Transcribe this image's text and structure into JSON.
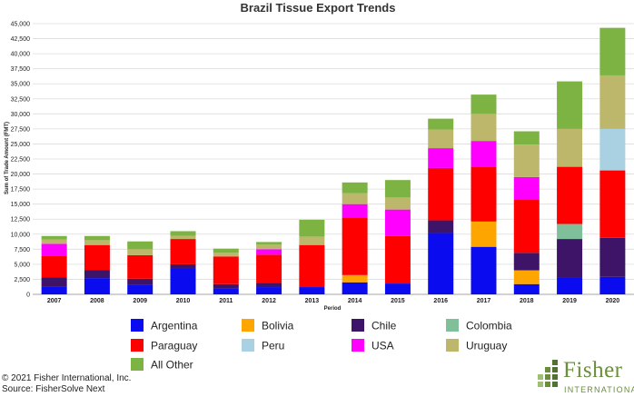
{
  "chart_data": {
    "type": "bar",
    "stacked": true,
    "title": "Brazil Tissue Export Trends",
    "xlabel": "Period",
    "ylabel": "Sum of Trade Amount (FMT)",
    "ylim": [
      0,
      45000
    ],
    "yticks": [
      0,
      2500,
      5000,
      7500,
      10000,
      12500,
      15000,
      17500,
      20000,
      22500,
      25000,
      27500,
      30000,
      32500,
      35000,
      37500,
      40000,
      42500,
      45000
    ],
    "ytick_labels": [
      "0",
      "2,500",
      "5,000",
      "7,500",
      "10,000",
      "12,500",
      "15,000",
      "17,500",
      "20,000",
      "22,500",
      "25,000",
      "27,500",
      "30,000",
      "32,500",
      "35,000",
      "37,500",
      "40,000",
      "42,500",
      "45,000"
    ],
    "grid": true,
    "legend_position": "bottom",
    "categories": [
      "2007",
      "2008",
      "2009",
      "2010",
      "2011",
      "2012",
      "2013",
      "2014",
      "2015",
      "2016",
      "2017",
      "2018",
      "2019",
      "2020"
    ],
    "series": [
      {
        "name": "Argentina",
        "color": "#0b0bf0",
        "values": [
          1300,
          2700,
          1600,
          4300,
          1000,
          1200,
          1200,
          2000,
          1800,
          10200,
          7900,
          1700,
          2800,
          2900
        ]
      },
      {
        "name": "Bolivia",
        "color": "#ffa500",
        "values": [
          0,
          0,
          0,
          0,
          0,
          0,
          0,
          1200,
          0,
          0,
          4200,
          2300,
          0,
          0
        ]
      },
      {
        "name": "Chile",
        "color": "#3d1467",
        "values": [
          1500,
          1300,
          1000,
          700,
          700,
          700,
          0,
          0,
          0,
          2100,
          0,
          2900,
          6400,
          6500
        ]
      },
      {
        "name": "Colombia",
        "color": "#7fbf9a",
        "values": [
          0,
          0,
          0,
          0,
          0,
          0,
          0,
          0,
          0,
          0,
          0,
          0,
          2500,
          0
        ]
      },
      {
        "name": "Paraguay",
        "color": "#ff0000",
        "values": [
          3600,
          4200,
          3900,
          4200,
          4600,
          4700,
          7000,
          9600,
          7900,
          8700,
          9100,
          8800,
          9500,
          11200
        ]
      },
      {
        "name": "Peru",
        "color": "#a9d1e1",
        "values": [
          0,
          0,
          0,
          0,
          0,
          0,
          0,
          0,
          0,
          0,
          0,
          0,
          0,
          6900
        ]
      },
      {
        "name": "USA",
        "color": "#ff00ff",
        "values": [
          2000,
          0,
          0,
          0,
          0,
          900,
          0,
          2200,
          4400,
          3300,
          4300,
          3800,
          0,
          0
        ]
      },
      {
        "name": "Uruguay",
        "color": "#bdb76b",
        "values": [
          700,
          800,
          1000,
          500,
          600,
          800,
          1400,
          1800,
          2000,
          3100,
          4500,
          5400,
          6300,
          8900
        ]
      },
      {
        "name": "All Other",
        "color": "#7cb342",
        "values": [
          600,
          700,
          1300,
          800,
          700,
          400,
          2800,
          1800,
          2900,
          1800,
          3200,
          2200,
          7900,
          7900
        ]
      }
    ]
  },
  "legend": {
    "items": [
      "Argentina",
      "Bolivia",
      "Chile",
      "Colombia",
      "Paraguay",
      "Peru",
      "USA",
      "Uruguay",
      "All Other"
    ]
  },
  "footer": {
    "copyright": "© 2021 Fisher International, Inc.",
    "source": "Source: FisherSolve Next"
  },
  "logo": {
    "name": "Fisher",
    "sub": "INTERNATIONAL",
    "color": "#6a8e3e"
  }
}
